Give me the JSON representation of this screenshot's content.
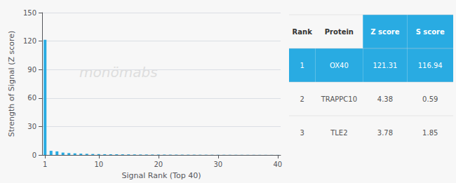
{
  "chart_data": {
    "type": "bar",
    "xlabel": "Signal Rank (Top 40)",
    "ylabel": "Strength of Signal (Z score)",
    "x": [
      1,
      2,
      3,
      4,
      5,
      6,
      7,
      8,
      9,
      10,
      11,
      12,
      13,
      14,
      15,
      16,
      17,
      18,
      19,
      20,
      21,
      22,
      23,
      24,
      25,
      26,
      27,
      28,
      29,
      30,
      31,
      32,
      33,
      34,
      35,
      36,
      37,
      38,
      39,
      40
    ],
    "values": [
      121.31,
      4.38,
      3.78,
      2.5,
      2.0,
      1.7,
      1.4,
      1.2,
      1.0,
      0.9,
      0.8,
      0.75,
      0.7,
      0.65,
      0.6,
      0.55,
      0.5,
      0.47,
      0.44,
      0.41,
      0.38,
      0.36,
      0.34,
      0.32,
      0.3,
      0.28,
      0.26,
      0.24,
      0.22,
      0.2,
      0.19,
      0.18,
      0.17,
      0.16,
      0.15,
      0.14,
      0.13,
      0.12,
      0.11,
      0.1
    ],
    "color": "#29abe2",
    "xlim": [
      0.5,
      40.5
    ],
    "xticks": [
      1,
      10,
      20,
      30,
      40
    ],
    "ylim": [
      0,
      150
    ],
    "yticks": [
      0,
      30,
      60,
      90,
      120,
      150
    ],
    "grid": true,
    "annotations": [
      "monömabs"
    ],
    "table": {
      "headers": [
        "Rank",
        "Protein",
        "Z score",
        "S score"
      ],
      "rows": [
        [
          "1",
          "OX40",
          "121.31",
          "116.94"
        ],
        [
          "2",
          "TRAPPC10",
          "4.38",
          "0.59"
        ],
        [
          "3",
          "TLE2",
          "3.78",
          "1.85"
        ]
      ]
    }
  }
}
